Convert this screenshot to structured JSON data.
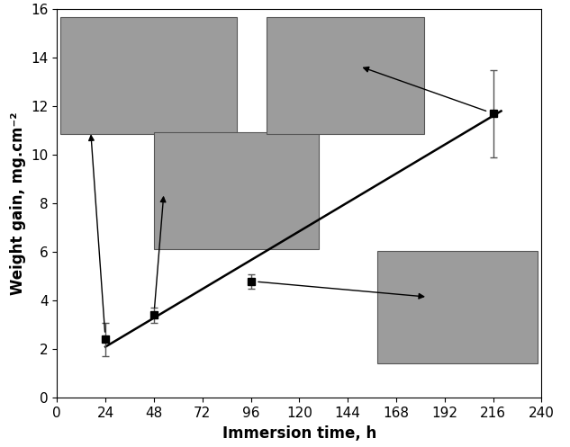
{
  "chart_data": {
    "type": "scatter",
    "x_label": "Immersion time, h",
    "y_label": "Weight gain, mg.cm⁻²",
    "x": [
      24,
      48,
      96,
      216
    ],
    "values": [
      2.4,
      3.4,
      4.8,
      11.7
    ],
    "errors": [
      0.7,
      0.3,
      0.3,
      1.8
    ],
    "fit_line": {
      "x": [
        24,
        220
      ],
      "values": [
        2.1,
        11.8
      ]
    },
    "color": "#000000",
    "marker": "square",
    "xlim": [
      0,
      240
    ],
    "xticks": [
      0,
      24,
      48,
      72,
      96,
      120,
      144,
      168,
      192,
      216,
      240
    ],
    "ylim": [
      0,
      16
    ],
    "yticks": [
      0,
      2,
      4,
      6,
      8,
      10,
      12,
      14,
      16
    ],
    "grid": false
  }
}
